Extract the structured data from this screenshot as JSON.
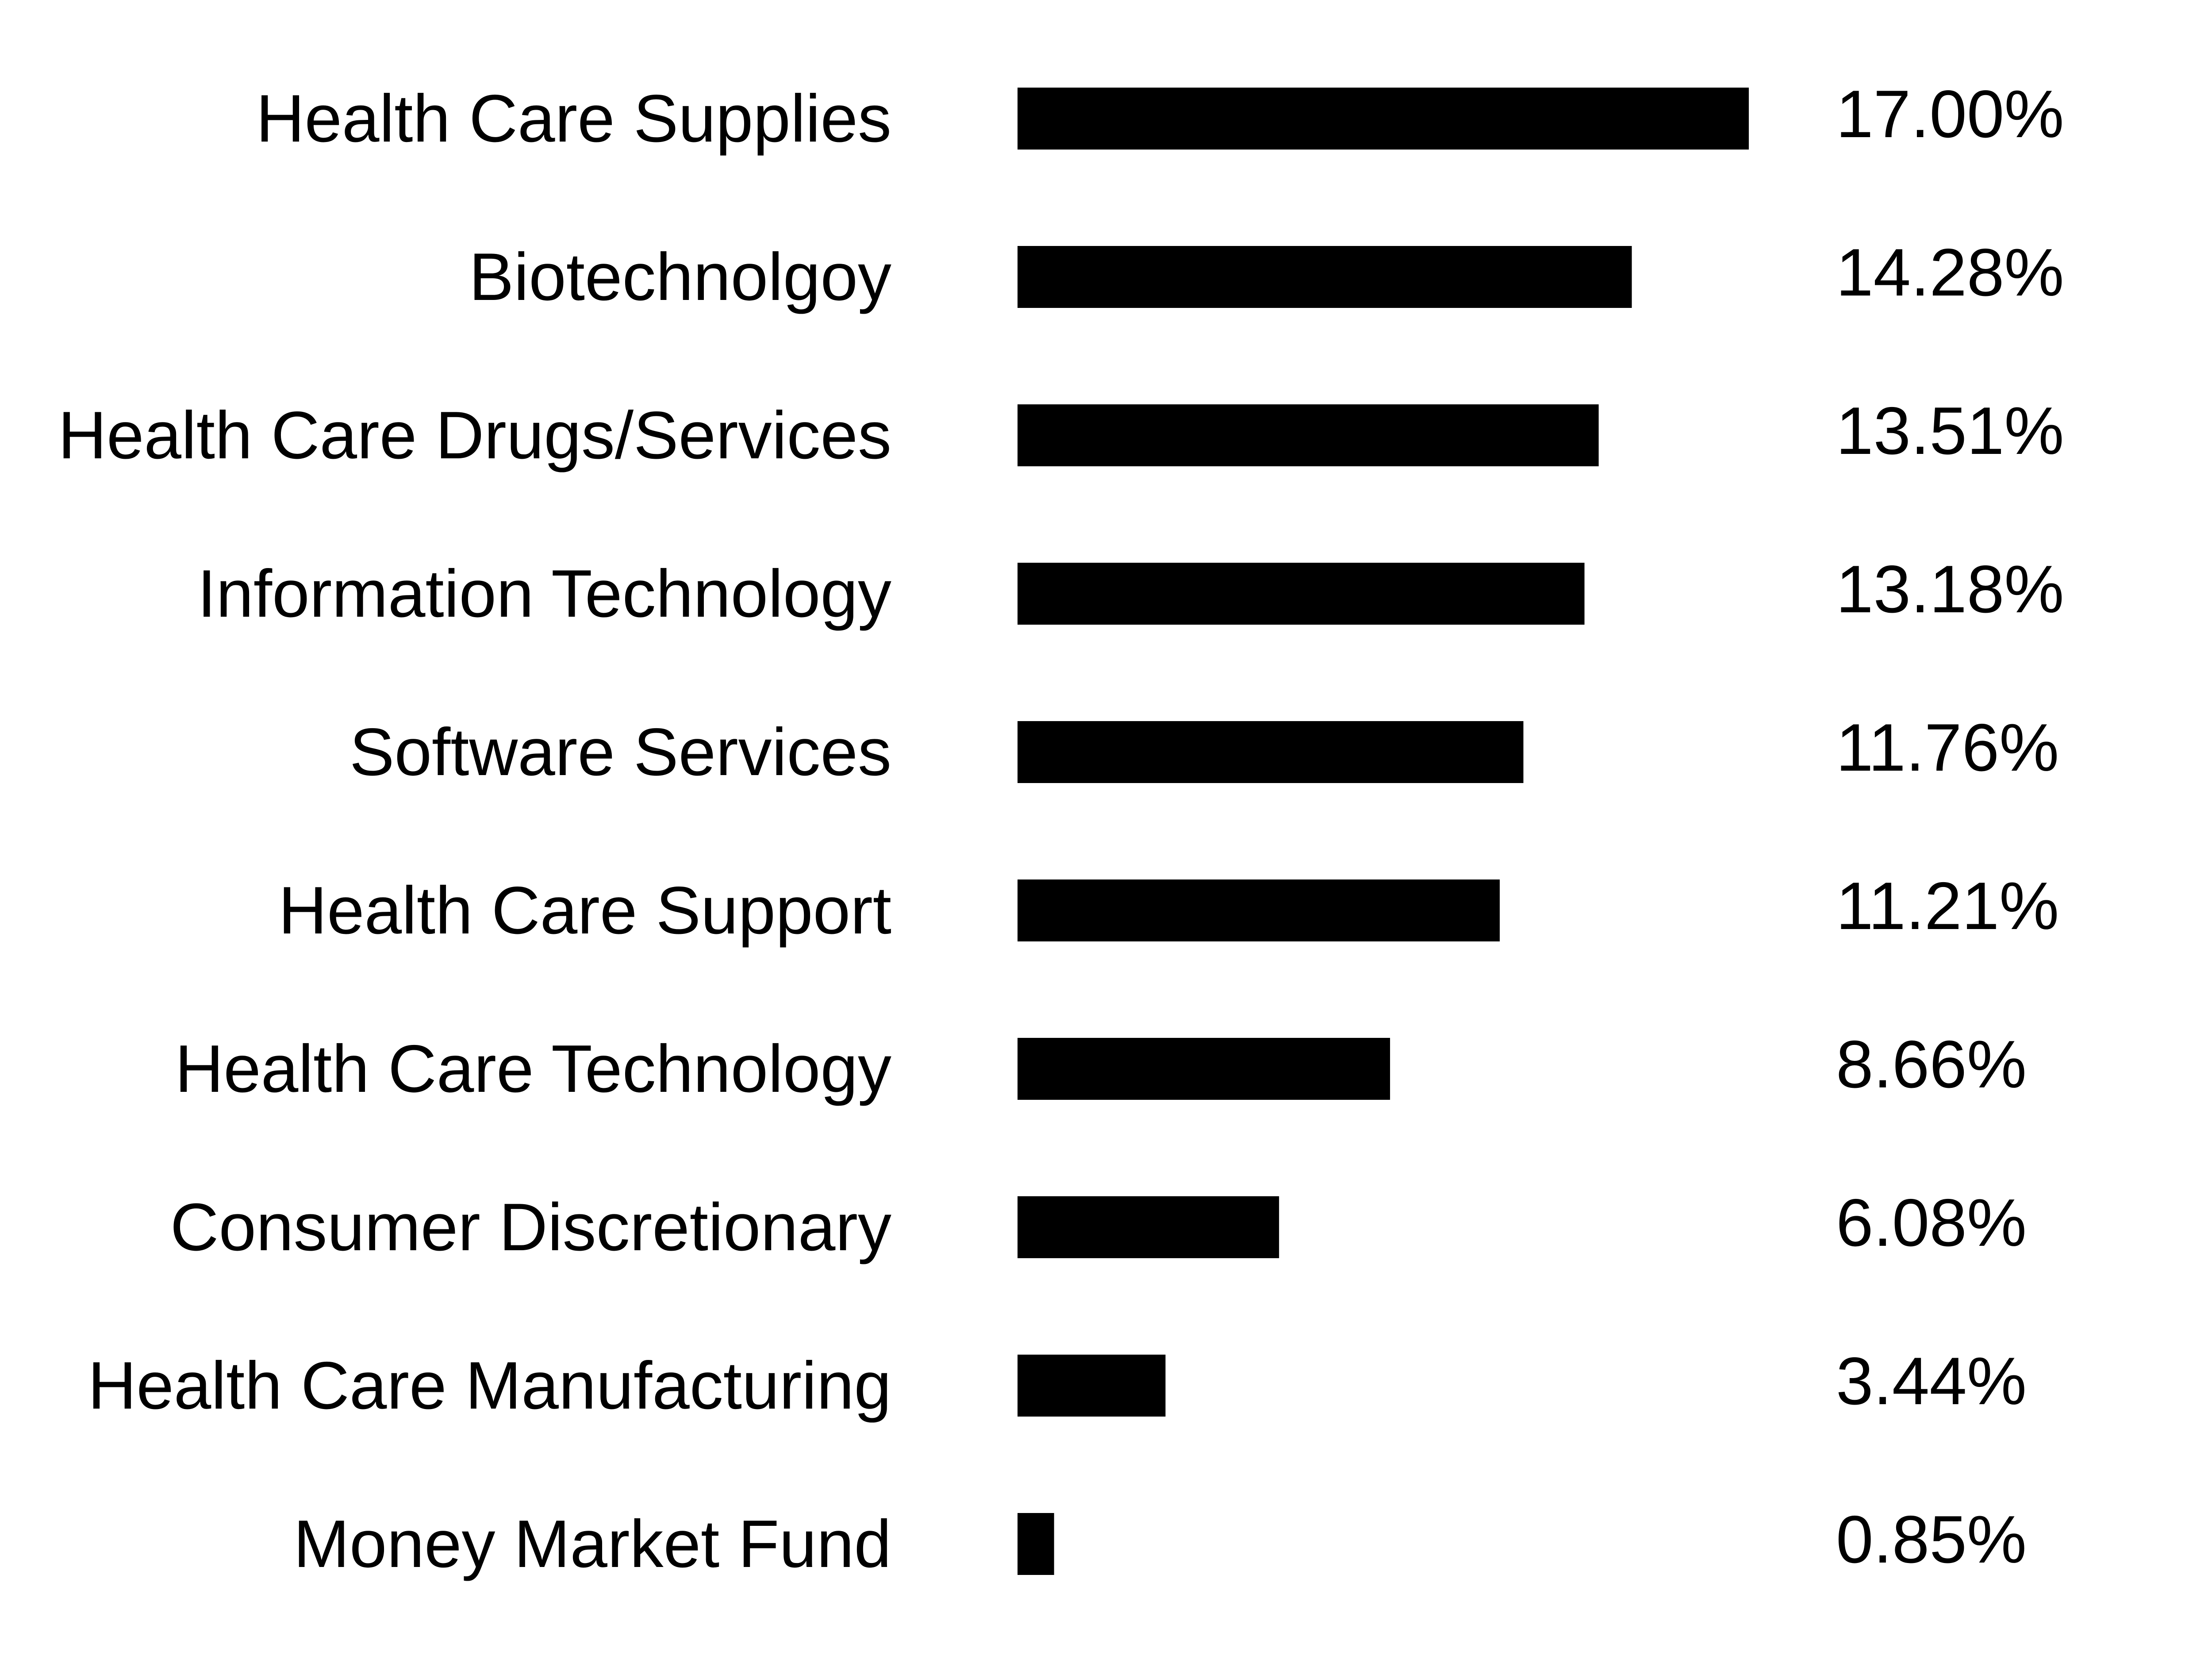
{
  "chart_data": {
    "type": "bar",
    "orientation": "horizontal",
    "categories": [
      "Health Care Supplies",
      "Biotechnolgoy",
      "Health Care Drugs/Services",
      "Information Technology",
      "Software Services",
      "Health Care Support",
      "Health Care Technology",
      "Consumer Discretionary",
      "Health Care Manufacturing",
      "Money Market Fund"
    ],
    "values": [
      17.0,
      14.28,
      13.51,
      13.18,
      11.76,
      11.21,
      8.66,
      6.08,
      3.44,
      0.85
    ],
    "value_labels": [
      "17.00%",
      "14.28%",
      "13.51%",
      "13.18%",
      "11.76%",
      "11.21%",
      "8.66%",
      "6.08%",
      "3.44%",
      "0.85%"
    ],
    "title": "",
    "xlabel": "",
    "ylabel": "",
    "xlim": [
      0,
      17.0
    ],
    "grid": false,
    "bar_color": "#000000",
    "text_color": "#000000"
  }
}
